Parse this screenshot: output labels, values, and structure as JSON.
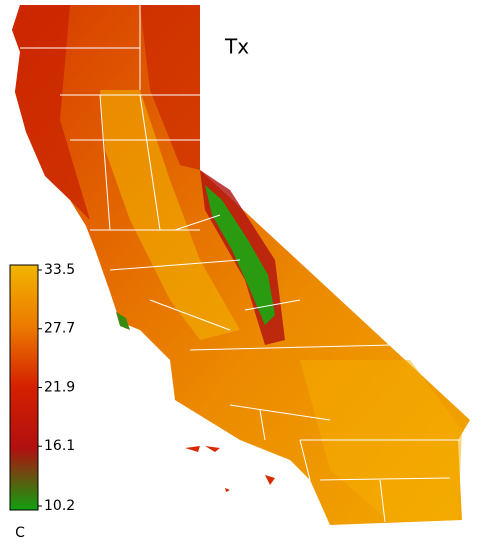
{
  "title": "Tx",
  "colorbar": {
    "ticks": [
      33.5,
      27.7,
      21.9,
      16.1,
      10.2
    ],
    "unit": "C",
    "colors": [
      "#f2b400",
      "#ec7a00",
      "#d42000",
      "#b01010",
      "#10a010"
    ]
  }
}
